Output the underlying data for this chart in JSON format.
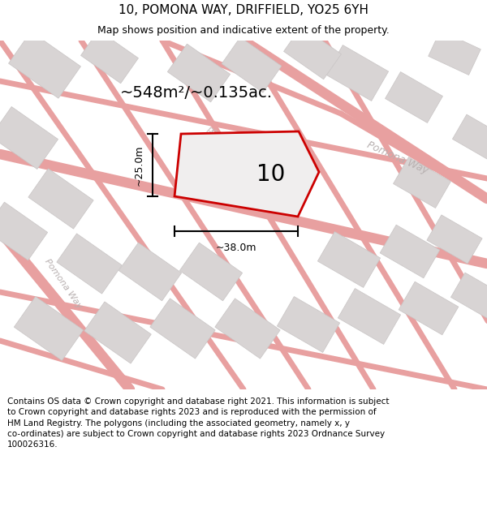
{
  "title": "10, POMONA WAY, DRIFFIELD, YO25 6YH",
  "subtitle": "Map shows position and indicative extent of the property.",
  "area_label": "~548m²/~0.135ac.",
  "plot_number": "10",
  "width_label": "~38.0m",
  "height_label": "~25.0m",
  "footer": "Contains OS data © Crown copyright and database right 2021. This information is subject to Crown copyright and database rights 2023 and is reproduced with the permission of HM Land Registry. The polygons (including the associated geometry, namely x, y co-ordinates) are subject to Crown copyright and database rights 2023 Ordnance Survey 100026316.",
  "map_bg": "#f0eeee",
  "plot_color": "#cc0000",
  "road_color": "#e8a0a0",
  "building_color": "#d8d4d4",
  "building_edge": "#c8c4c4",
  "road_label_color": "#b8b0b0",
  "road_label_color2": "#c8c0c0",
  "title_fontsize": 11,
  "subtitle_fontsize": 9,
  "footer_fontsize": 7.5,
  "road_lw": 5,
  "road_lw_main": 9
}
